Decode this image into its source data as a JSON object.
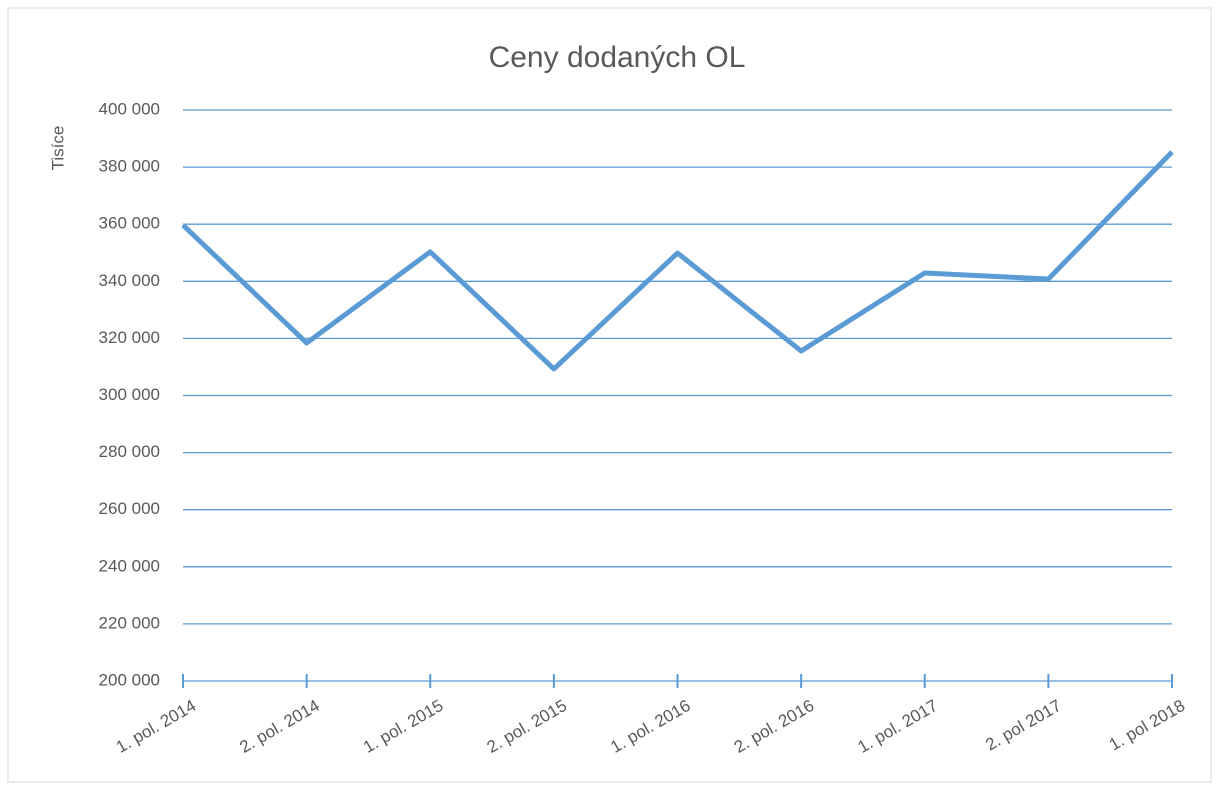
{
  "chart_data": {
    "type": "line",
    "title": "Ceny dodaných OL",
    "y_label": "Tisíce",
    "categories": [
      "1. pol. 2014",
      "2. pol. 2014",
      "1. pol. 2015",
      "2. pol. 2015",
      "1. pol. 2016",
      "2. pol. 2016",
      "1. pol. 2017",
      "2. pol 2017",
      "1. pol 2018"
    ],
    "series": [
      {
        "name": "Ceny dodaných OL",
        "color": "#5b9bd5",
        "values": [
          359700,
          318400,
          350300,
          309300,
          349900,
          315600,
          342900,
          340800,
          385300
        ]
      }
    ],
    "ylim": [
      200000,
      400000
    ],
    "yticks": [
      {
        "value": 200000,
        "label": "200 000"
      },
      {
        "value": 220000,
        "label": "220 000"
      },
      {
        "value": 240000,
        "label": "240 000"
      },
      {
        "value": 260000,
        "label": "260 000"
      },
      {
        "value": 280000,
        "label": "280 000"
      },
      {
        "value": 300000,
        "label": "300 000"
      },
      {
        "value": 320000,
        "label": "320 000"
      },
      {
        "value": 340000,
        "label": "340 000"
      },
      {
        "value": 360000,
        "label": "360 000"
      },
      {
        "value": 380000,
        "label": "380 000"
      },
      {
        "value": 400000,
        "label": "400 000"
      }
    ],
    "grid": true,
    "grid_color": "#5b9bd5"
  }
}
